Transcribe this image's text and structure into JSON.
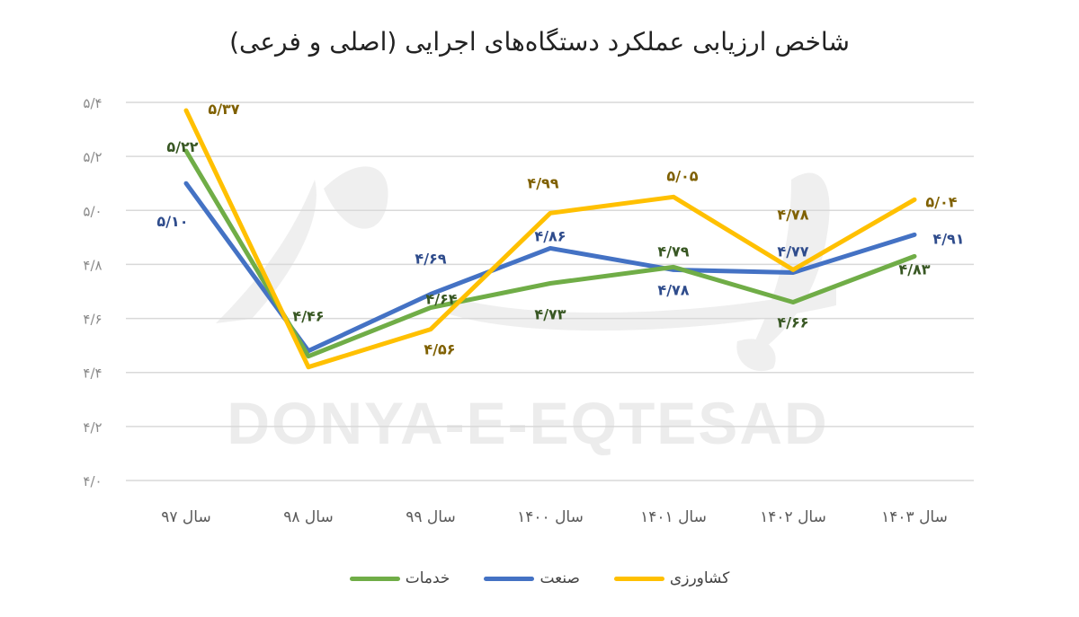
{
  "chart_data": {
    "type": "line",
    "title": "شاخص ارزیابی عملکرد دستگاه‌های اجرایی (اصلی و فرعی)",
    "xlabel": "",
    "ylabel": "",
    "categories": [
      "سال ۹۷",
      "سال ۹۸",
      "سال ۹۹",
      "سال ۱۴۰۰",
      "سال ۱۴۰۱",
      "سال ۱۴۰۲",
      "سال ۱۴۰۳"
    ],
    "series": [
      {
        "name": "کشاورزی",
        "color": "#FFC000",
        "label_color": "#7F6000",
        "values": [
          5.37,
          4.42,
          4.56,
          4.99,
          5.05,
          4.78,
          5.04
        ],
        "labels": [
          "۵/۳۷",
          "",
          "۴/۵۶",
          "۴/۹۹",
          "۵/۰۵",
          "۴/۷۸",
          "۵/۰۴"
        ]
      },
      {
        "name": "صنعت",
        "color": "#4472C4",
        "label_color": "#2F4C8C",
        "values": [
          5.1,
          4.48,
          4.69,
          4.86,
          4.78,
          4.77,
          4.91
        ],
        "labels": [
          "۵/۱۰",
          "",
          "۴/۶۹",
          "۴/۸۶",
          "۴/۷۸",
          "۴/۷۷",
          "۴/۹۱"
        ]
      },
      {
        "name": "خدمات",
        "color": "#70AD47",
        "label_color": "#385723",
        "values": [
          5.22,
          4.46,
          4.64,
          4.73,
          4.79,
          4.66,
          4.83
        ],
        "labels": [
          "۵/۲۲",
          "۴/۴۶",
          "۴/۶۴",
          "۴/۷۳",
          "۴/۷۹",
          "۴/۶۶",
          "۴/۸۳"
        ]
      }
    ],
    "ylim": [
      4.0,
      5.4
    ],
    "yticks": [
      5.4,
      5.2,
      5.0,
      4.8,
      4.6,
      4.4,
      4.2,
      4.0
    ],
    "ytick_labels": [
      "۵/۴",
      "۵/۲",
      "۵/۰",
      "۴/۸",
      "۴/۶",
      "۴/۴",
      "۴/۲",
      "۴/۰"
    ],
    "grid": true,
    "legend_position": "bottom",
    "legend_order": [
      "کشاورزی",
      "صنعت",
      "خدمات"
    ]
  },
  "watermark": {
    "text": "DONYA-E-EQTESAD"
  }
}
